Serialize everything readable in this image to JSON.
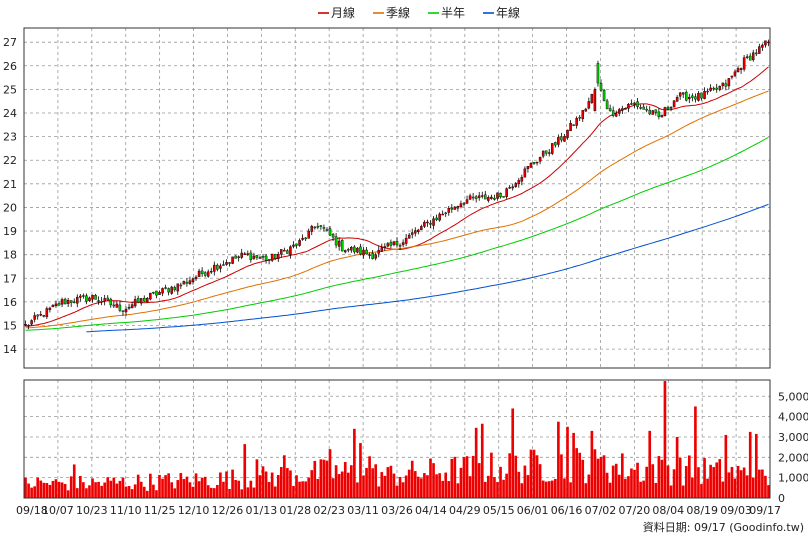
{
  "chart_data": {
    "type": "candlestick-with-volume",
    "title": "",
    "legend": {
      "placement": "top-center",
      "entries": [
        {
          "name": "月線",
          "color": "#cc0000"
        },
        {
          "name": "季線",
          "color": "#e07000"
        },
        {
          "name": "半年",
          "color": "#00cc00"
        },
        {
          "name": "年線",
          "color": "#0050d0"
        }
      ]
    },
    "price_axis": {
      "side": "left",
      "ticks": [
        14,
        15,
        16,
        17,
        18,
        19,
        20,
        21,
        22,
        23,
        24,
        25,
        26,
        27
      ],
      "range": [
        13.2,
        27.6
      ]
    },
    "volume_axis": {
      "side": "right",
      "ticks": [
        0,
        1000,
        2000,
        3000,
        4000,
        5000
      ],
      "tick_labels": [
        "0",
        "1,000",
        "2,000",
        "3,000",
        "4,000",
        "5,000"
      ],
      "range": [
        0,
        5800
      ]
    },
    "x_tick_labels": [
      "09/18",
      "10/07",
      "10/23",
      "11/10",
      "11/25",
      "12/10",
      "12/26",
      "01/13",
      "01/28",
      "02/23",
      "03/11",
      "03/26",
      "04/14",
      "04/29",
      "05/15",
      "06/01",
      "06/16",
      "07/02",
      "07/20",
      "08/04",
      "08/19",
      "09/03",
      "09/17"
    ],
    "grid": true,
    "colors": {
      "up": "#dd0000",
      "down": "#00cc00",
      "volume": "#ee0000",
      "grid": "#999999"
    },
    "bar_count": 245,
    "close_anchors": [
      [
        0,
        15.0
      ],
      [
        12,
        16.0
      ],
      [
        22,
        16.2
      ],
      [
        32,
        15.7
      ],
      [
        42,
        16.3
      ],
      [
        52,
        16.8
      ],
      [
        62,
        17.5
      ],
      [
        72,
        18.0
      ],
      [
        80,
        17.8
      ],
      [
        90,
        18.5
      ],
      [
        96,
        19.3
      ],
      [
        104,
        18.3
      ],
      [
        114,
        18.0
      ],
      [
        124,
        18.6
      ],
      [
        134,
        19.5
      ],
      [
        144,
        20.3
      ],
      [
        156,
        20.5
      ],
      [
        166,
        21.8
      ],
      [
        175,
        22.8
      ],
      [
        183,
        24.0
      ],
      [
        188,
        25.2
      ],
      [
        192,
        24.0
      ],
      [
        200,
        24.4
      ],
      [
        208,
        23.8
      ],
      [
        214,
        24.7
      ],
      [
        222,
        24.7
      ],
      [
        230,
        25.2
      ],
      [
        236,
        26.2
      ],
      [
        242,
        26.8
      ],
      [
        244,
        27.0
      ]
    ],
    "volume_anchors": [
      [
        0,
        900
      ],
      [
        20,
        900
      ],
      [
        40,
        1000
      ],
      [
        60,
        1100
      ],
      [
        80,
        1300
      ],
      [
        100,
        1600
      ],
      [
        120,
        1400
      ],
      [
        140,
        1700
      ],
      [
        160,
        1900
      ],
      [
        180,
        2100
      ],
      [
        200,
        1800
      ],
      [
        220,
        1700
      ],
      [
        235,
        1500
      ],
      [
        244,
        1100
      ]
    ],
    "volume_spikes": [
      [
        16,
        1650
      ],
      [
        72,
        2650
      ],
      [
        76,
        1900
      ],
      [
        85,
        2100
      ],
      [
        100,
        2400
      ],
      [
        108,
        3400
      ],
      [
        110,
        2700
      ],
      [
        113,
        2050
      ],
      [
        148,
        3450
      ],
      [
        150,
        3650
      ],
      [
        160,
        4400
      ],
      [
        168,
        2100
      ],
      [
        175,
        3750
      ],
      [
        178,
        3500
      ],
      [
        180,
        3200
      ],
      [
        186,
        3300
      ],
      [
        190,
        2100
      ],
      [
        205,
        3300
      ],
      [
        210,
        5750
      ],
      [
        214,
        3000
      ],
      [
        220,
        4500
      ],
      [
        230,
        3100
      ],
      [
        238,
        3250
      ],
      [
        240,
        3150
      ]
    ],
    "moving_average_windows": {
      "月線": 20,
      "季線": 60,
      "半年": 120,
      "年線": 240
    },
    "footer": "資料日期: 09/17 (Goodinfo.tw)"
  }
}
